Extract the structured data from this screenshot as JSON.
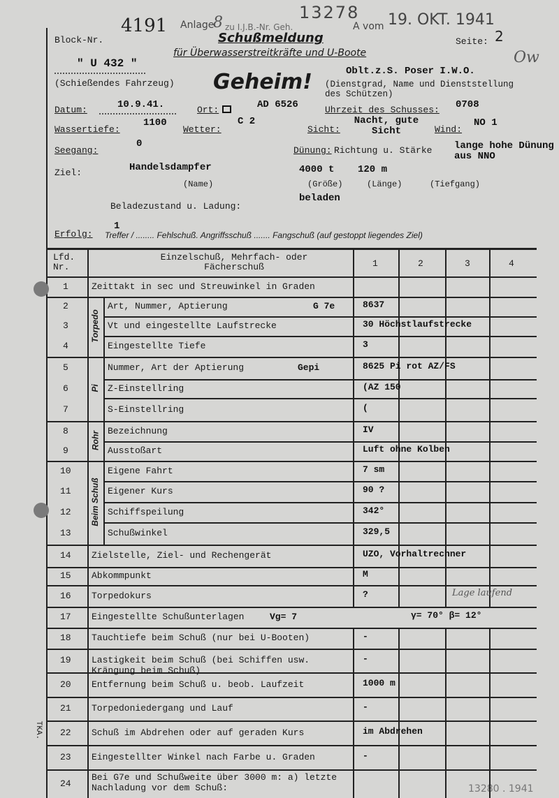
{
  "header": {
    "block_label": "Block-Nr.",
    "block_no": "4191",
    "anlage": "Anlage",
    "anlage_no": "8",
    "ref_text": "zu I.J.B.-Nr. Geh.",
    "ref_no": "13278",
    "ref_suffix": "A vom",
    "stamp_date": "19. OKT. 1941",
    "title": "Schußmeldung",
    "subtitle": "für Überwasserstreitkräfte und U-Boote",
    "page_label": "Seite:",
    "page_no": "2",
    "initials": "Ow",
    "vessel": "\" U 432 \"",
    "vessel_label": "(Schießendes Fahrzeug)",
    "secret": "Geheim!",
    "shooter": "Oblt.z.S. Poser I.W.O.",
    "shooter_label": "(Dienstgrad, Name und Dienststellung des Schützen)",
    "date_label": "Datum:",
    "date": "10.9.41.",
    "place_label": "Ort:",
    "place": "AD 6526",
    "time_label": "Uhrzeit des Schusses:",
    "time": "0708",
    "depth_label": "Wassertiefe:",
    "depth": "1100",
    "weather_label": "Wetter:",
    "weather": "C 2",
    "visibility_label": "Sicht:",
    "visibility": "Nacht, gute Sicht",
    "wind_label": "Wind:",
    "wind": "NO 1",
    "sea_label": "Seegang:",
    "sea": "0",
    "swell_label": "Dünung:",
    "swell_sub": "Richtung u. Stärke",
    "swell": "lange hohe Dünung aus NNO",
    "target_label": "Ziel:",
    "target_name": "Handelsdampfer",
    "target_size": "4000 t",
    "target_length": "120 m",
    "name_label": "(Name)",
    "size_label": "(Größe)",
    "length_label": "(Länge)",
    "draft_label": "(Tiefgang)",
    "load_label": "Beladezustand u. Ladung:",
    "load": "beladen",
    "success_label": "Erfolg:",
    "hits": "1",
    "success_text": "Treffer / ........ Fehlschuß.   Angriffsschuß ....... Fangschuß (auf gestoppt liegendes Ziel)"
  },
  "table": {
    "col_nr": "Lfd. Nr.",
    "col_desc": "Einzelschuß, Mehrfach- oder Fächerschuß",
    "cols": [
      "1",
      "2",
      "3",
      "4"
    ],
    "groups": [
      "Torpedo",
      "Pi",
      "Rohr",
      "Beim Schuß"
    ],
    "rows": [
      {
        "nr": "1",
        "label": "Zeittakt in sec und Streuwinkel in Graden",
        "v": ""
      },
      {
        "nr": "2",
        "label": "Art, Nummer, Aptierung",
        "extra": "G 7e",
        "v": "8637"
      },
      {
        "nr": "3",
        "label": "Vt und eingestellte Laufstrecke",
        "v": "30 Höchstlaufstrecke"
      },
      {
        "nr": "4",
        "label": "Eingestellte Tiefe",
        "v": "3"
      },
      {
        "nr": "5",
        "label": "Nummer, Art der Aptierung",
        "extra": "Gepi",
        "v": "8625  Pi rot AZ/FS"
      },
      {
        "nr": "6",
        "label": "Z-Einstellring",
        "v": "(AZ 150"
      },
      {
        "nr": "7",
        "label": "S-Einstellring",
        "v": "("
      },
      {
        "nr": "8",
        "label": "Bezeichnung",
        "v": "IV"
      },
      {
        "nr": "9",
        "label": "Ausstoßart",
        "v": "Luft ohne Kolben"
      },
      {
        "nr": "10",
        "label": "Eigene Fahrt",
        "v": "7 sm"
      },
      {
        "nr": "11",
        "label": "Eigener Kurs",
        "v": "90 ?"
      },
      {
        "nr": "12",
        "label": "Schiffspeilung",
        "v": "342°"
      },
      {
        "nr": "13",
        "label": "Schußwinkel",
        "v": "329,5"
      },
      {
        "nr": "14",
        "label": "Zielstelle, Ziel- und Rechengerät",
        "v": "UZO,  Vorhaltrechner"
      },
      {
        "nr": "15",
        "label": "Abkommpunkt",
        "v": "M"
      },
      {
        "nr": "16",
        "label": "Torpedokurs",
        "v": "?",
        "note": "Lage laufend"
      },
      {
        "nr": "17",
        "label": "Eingestellte Schußunterlagen",
        "extra": "Vg= 7",
        "v": "γ= 70°   β= 12°"
      },
      {
        "nr": "18",
        "label": "Tauchtiefe beim Schuß (nur bei U-Booten)",
        "v": "-"
      },
      {
        "nr": "19",
        "label": "Lastigkeit beim Schuß (bei Schiffen usw. Krängung beim Schuß)",
        "v": "-"
      },
      {
        "nr": "20",
        "label": "Entfernung beim Schuß u. beob. Laufzeit",
        "v": "1000 m"
      },
      {
        "nr": "21",
        "label": "Torpedoniedergang und Lauf",
        "v": "-"
      },
      {
        "nr": "22",
        "label": "Schuß im Abdrehen oder auf geraden Kurs",
        "v": "im Abdrehen"
      },
      {
        "nr": "23",
        "label": "Eingestellter Winkel nach Farbe u. Graden",
        "v": "-"
      },
      {
        "nr": "24",
        "label": "Bei G7e und Schußweite über 3000 m: a) letzte Nachladung vor dem Schuß:",
        "v": ""
      }
    ]
  },
  "margin_note": "TKA.",
  "footer_stamp": "13280 . 1941"
}
